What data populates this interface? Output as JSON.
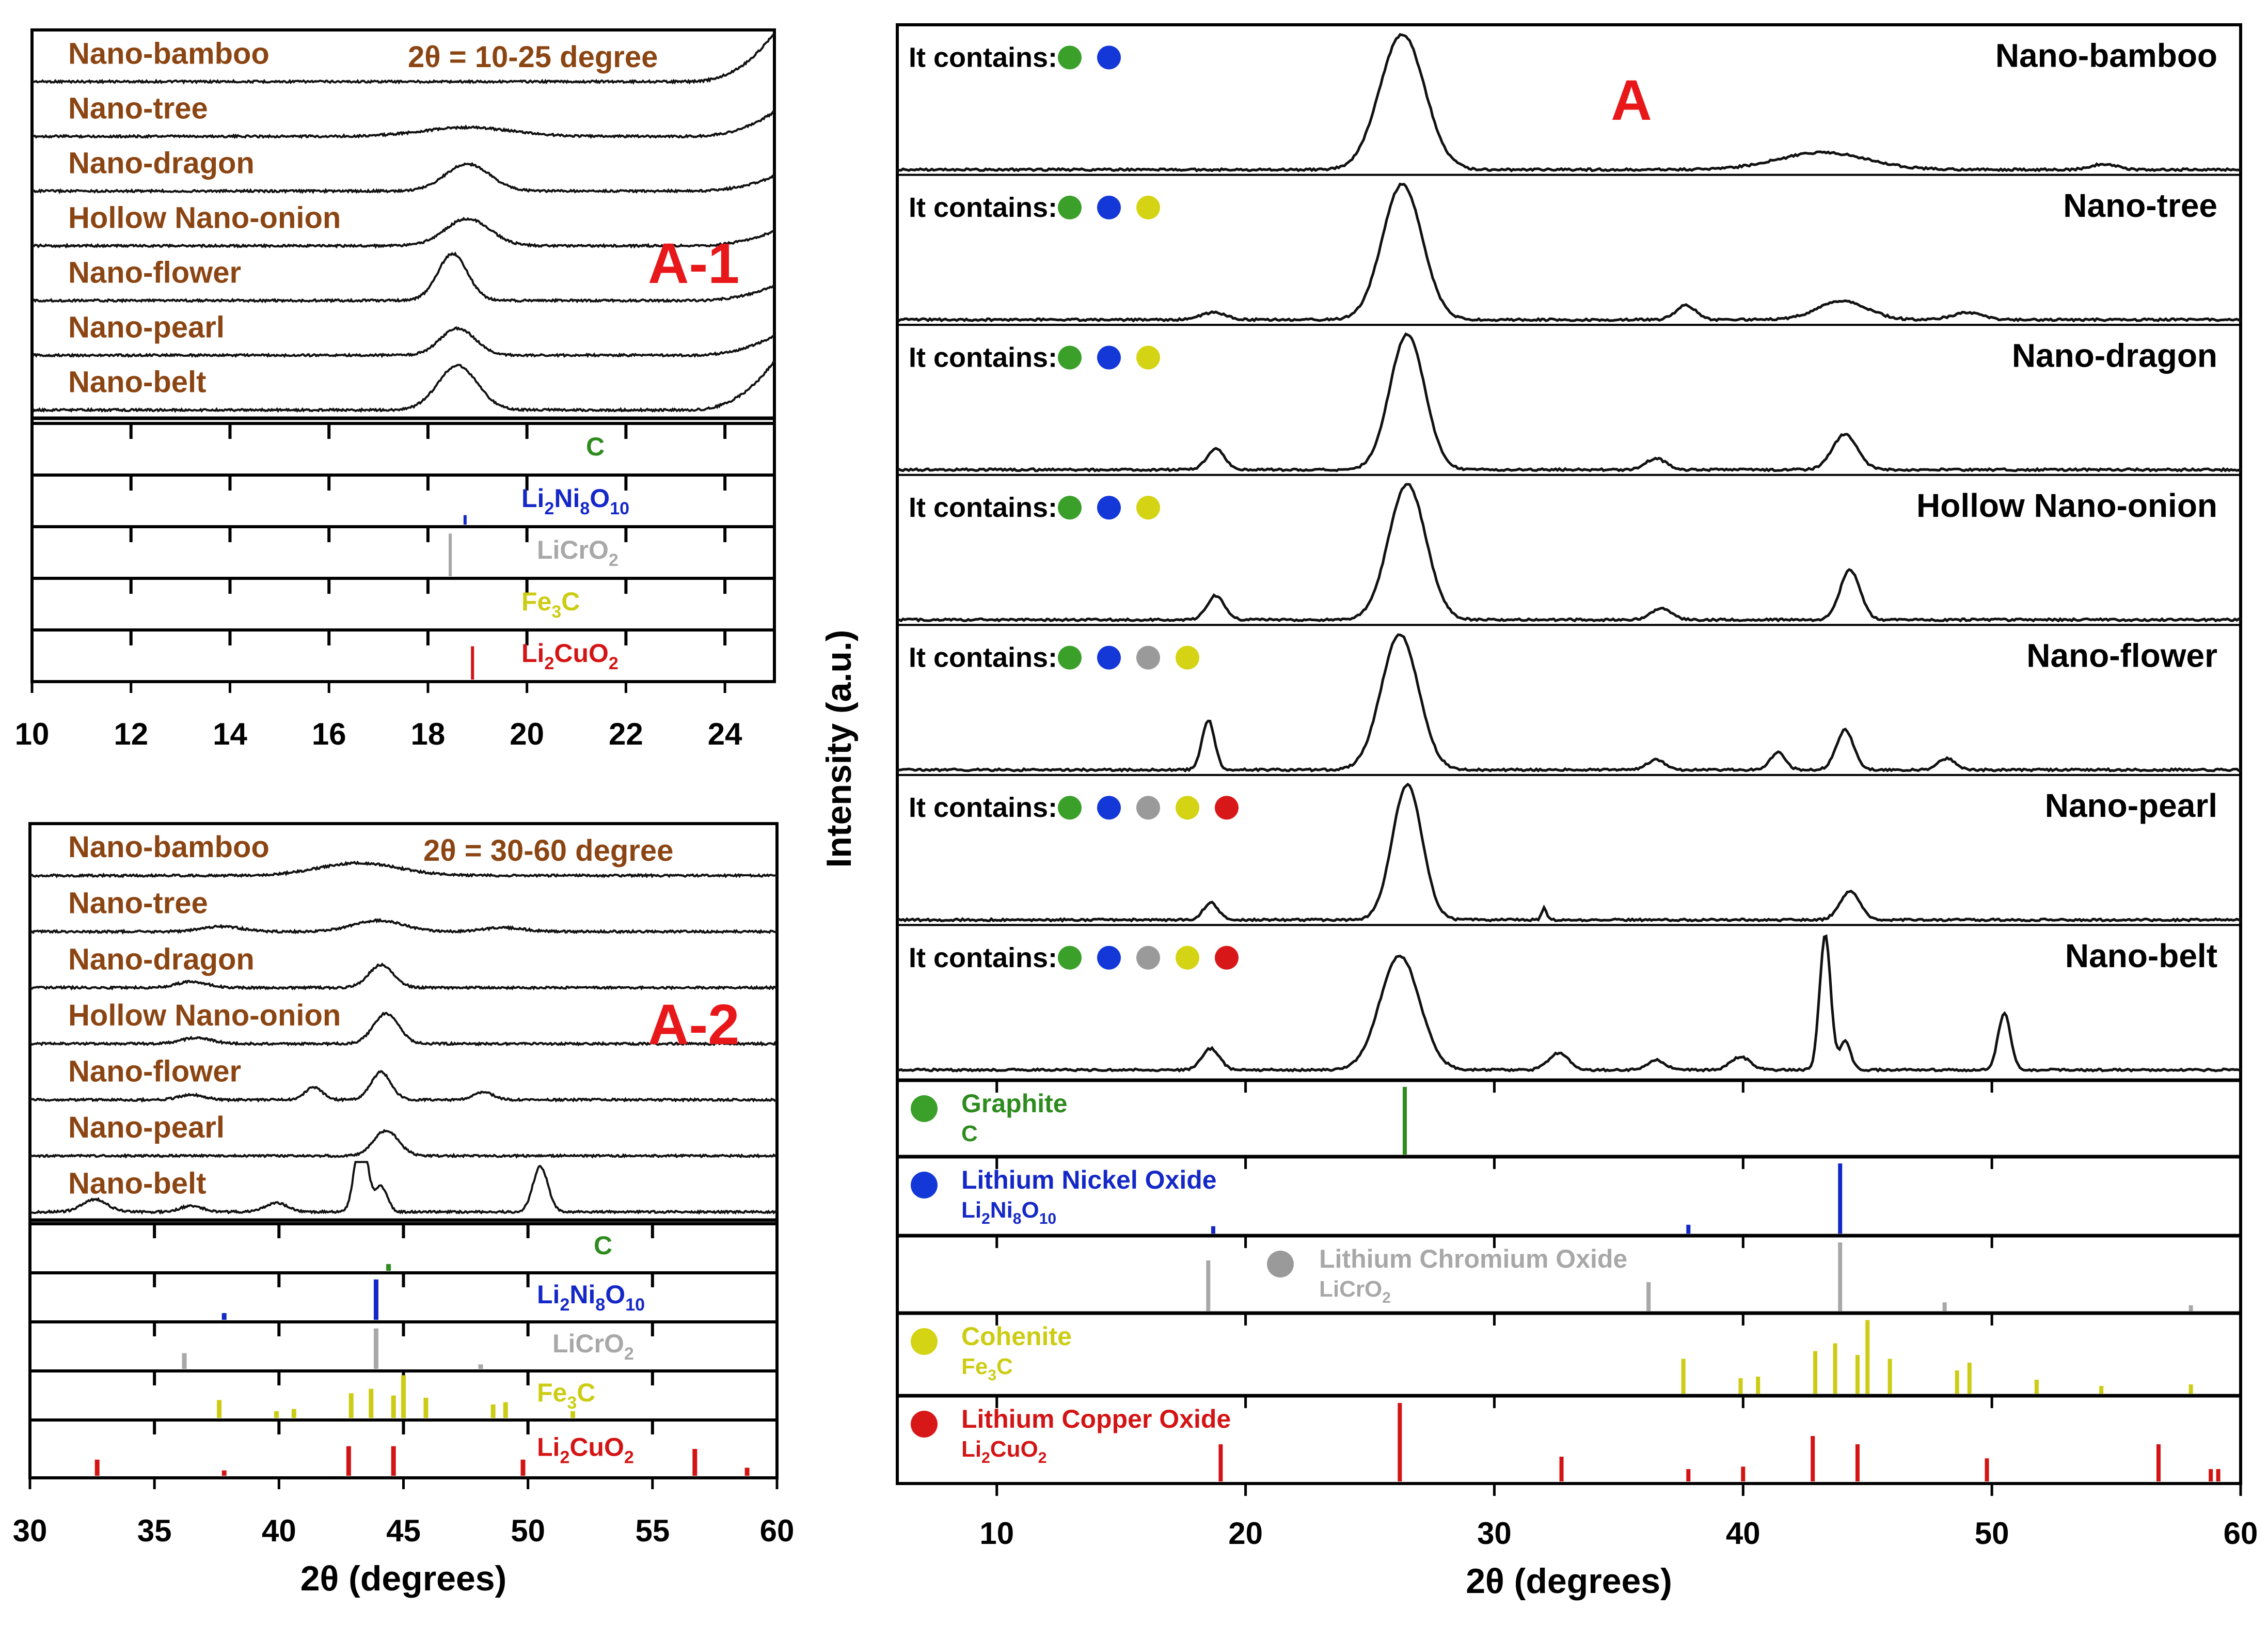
{
  "colors": {
    "sample_text": "#8B4513",
    "panel_letter": "#e8171a",
    "C": "#2e8b1e",
    "Li2Ni8O10": "#1428c8",
    "LiCrO2": "#a8a8a8",
    "Fe3C": "#cccc14",
    "Li2CuO2": "#d41414",
    "dot_green": "#3aa02a",
    "dot_blue": "#1438d8",
    "dot_gray": "#9a9a9a",
    "dot_yellow": "#d4d414",
    "dot_red": "#d81818"
  },
  "chart_data": [
    {
      "id": "A-1",
      "type": "line",
      "panel_label": "A-1",
      "range_label": "2θ = 10-25 degree",
      "xlim": [
        10,
        25
      ],
      "xticks": [
        "10",
        "12",
        "14",
        "16",
        "18",
        "20",
        "22",
        "24"
      ],
      "xtick_values": [
        10,
        12,
        14,
        16,
        18,
        20,
        22,
        24
      ],
      "xlabel": "",
      "samples": [
        {
          "name": "Nano-bamboo",
          "peaks": [],
          "edge_rise": 1.0
        },
        {
          "name": "Nano-tree",
          "peaks": [
            {
              "x": 18.8,
              "h": 0.18,
              "w": 0.9
            }
          ],
          "edge_rise": 0.5
        },
        {
          "name": "Nano-dragon",
          "peaks": [
            {
              "x": 18.8,
              "h": 0.55,
              "w": 0.45
            }
          ],
          "edge_rise": 0.3
        },
        {
          "name": "Hollow Nano-onion",
          "peaks": [
            {
              "x": 18.8,
              "h": 0.55,
              "w": 0.45
            }
          ],
          "edge_rise": 0.3
        },
        {
          "name": "Nano-flower",
          "peaks": [
            {
              "x": 18.5,
              "h": 0.95,
              "w": 0.3
            }
          ],
          "edge_rise": 0.3
        },
        {
          "name": "Nano-pearl",
          "peaks": [
            {
              "x": 18.6,
              "h": 0.55,
              "w": 0.35
            }
          ],
          "edge_rise": 0.4
        },
        {
          "name": "Nano-belt",
          "peaks": [
            {
              "x": 18.6,
              "h": 0.9,
              "w": 0.4
            }
          ],
          "edge_rise": 1.0
        }
      ],
      "reference_labels": [
        "C",
        "Li2Ni8O10",
        "LiCrO2",
        "Fe3C",
        "Li2CuO2"
      ],
      "reference_lines": [
        [],
        [
          {
            "x": 18.75,
            "h": 0.2
          }
        ],
        [
          {
            "x": 18.45,
            "h": 0.9
          }
        ],
        [],
        [
          {
            "x": 18.9,
            "h": 0.7
          }
        ]
      ]
    },
    {
      "id": "A-2",
      "type": "line",
      "panel_label": "A-2",
      "range_label": "2θ = 30-60 degree",
      "xlim": [
        30,
        60
      ],
      "xticks": [
        "30",
        "35",
        "40",
        "45",
        "50",
        "55",
        "60"
      ],
      "xtick_values": [
        30,
        35,
        40,
        45,
        50,
        55,
        60
      ],
      "xlabel": "2θ (degrees)",
      "samples": [
        {
          "name": "Nano-bamboo",
          "peaks": [
            {
              "x": 43.2,
              "h": 0.25,
              "w": 1.6
            }
          ]
        },
        {
          "name": "Nano-tree",
          "peaks": [
            {
              "x": 37.7,
              "h": 0.1,
              "w": 0.8
            },
            {
              "x": 44.0,
              "h": 0.22,
              "w": 1.0
            },
            {
              "x": 49.0,
              "h": 0.08,
              "w": 0.8
            }
          ]
        },
        {
          "name": "Nano-dragon",
          "peaks": [
            {
              "x": 36.5,
              "h": 0.12,
              "w": 0.6
            },
            {
              "x": 44.1,
              "h": 0.45,
              "w": 0.5
            }
          ]
        },
        {
          "name": "Hollow Nano-onion",
          "peaks": [
            {
              "x": 36.7,
              "h": 0.12,
              "w": 0.6
            },
            {
              "x": 44.3,
              "h": 0.6,
              "w": 0.5
            }
          ]
        },
        {
          "name": "Nano-flower",
          "peaks": [
            {
              "x": 36.5,
              "h": 0.1,
              "w": 0.5
            },
            {
              "x": 41.4,
              "h": 0.25,
              "w": 0.35
            },
            {
              "x": 44.1,
              "h": 0.55,
              "w": 0.4
            },
            {
              "x": 48.2,
              "h": 0.15,
              "w": 0.4
            }
          ]
        },
        {
          "name": "Nano-pearl",
          "peaks": [
            {
              "x": 44.3,
              "h": 0.5,
              "w": 0.5
            }
          ]
        },
        {
          "name": "Nano-belt",
          "peaks": [
            {
              "x": 32.6,
              "h": 0.25,
              "w": 0.5
            },
            {
              "x": 36.5,
              "h": 0.12,
              "w": 0.45
            },
            {
              "x": 39.9,
              "h": 0.18,
              "w": 0.45
            },
            {
              "x": 43.3,
              "h": 1.6,
              "w": 0.25
            },
            {
              "x": 44.1,
              "h": 0.5,
              "w": 0.25
            },
            {
              "x": 50.5,
              "h": 0.9,
              "w": 0.3
            }
          ]
        }
      ],
      "reference_labels": [
        "C",
        "Li2Ni8O10",
        "LiCrO2",
        "Fe3C",
        "Li2CuO2"
      ],
      "reference_lines": [
        [
          {
            "x": 44.4,
            "h": 0.15
          }
        ],
        [
          {
            "x": 37.8,
            "h": 0.15
          },
          {
            "x": 43.9,
            "h": 0.9
          }
        ],
        [
          {
            "x": 36.2,
            "h": 0.35
          },
          {
            "x": 43.9,
            "h": 0.9
          },
          {
            "x": 48.1,
            "h": 0.1
          }
        ],
        [
          {
            "x": 37.6,
            "h": 0.4
          },
          {
            "x": 39.9,
            "h": 0.15
          },
          {
            "x": 40.6,
            "h": 0.2
          },
          {
            "x": 42.9,
            "h": 0.55
          },
          {
            "x": 43.7,
            "h": 0.65
          },
          {
            "x": 44.6,
            "h": 0.5
          },
          {
            "x": 45.0,
            "h": 0.95
          },
          {
            "x": 45.9,
            "h": 0.45
          },
          {
            "x": 48.6,
            "h": 0.3
          },
          {
            "x": 49.1,
            "h": 0.35
          },
          {
            "x": 51.8,
            "h": 0.15
          }
        ],
        [
          {
            "x": 32.7,
            "h": 0.3
          },
          {
            "x": 37.8,
            "h": 0.1
          },
          {
            "x": 42.8,
            "h": 0.55
          },
          {
            "x": 44.6,
            "h": 0.55
          },
          {
            "x": 49.8,
            "h": 0.3
          },
          {
            "x": 56.7,
            "h": 0.5
          },
          {
            "x": 58.8,
            "h": 0.15
          }
        ]
      ]
    },
    {
      "id": "A",
      "type": "line",
      "panel_label": "A",
      "xlim": [
        6,
        60
      ],
      "xticks": [
        "10",
        "20",
        "30",
        "40",
        "50",
        "60"
      ],
      "xtick_values": [
        10,
        20,
        30,
        40,
        50,
        60
      ],
      "xlabel": "2θ (degrees)",
      "ylabel": "Intensity (a.u.)",
      "contains_prefix": "It contains:",
      "samples": [
        {
          "name": "Nano-bamboo",
          "dots": [
            "dot_green",
            "dot_blue"
          ],
          "peaks": [
            {
              "x": 26.3,
              "h": 0.95,
              "w": 0.9
            },
            {
              "x": 43.2,
              "h": 0.12,
              "w": 1.8
            },
            {
              "x": 54.5,
              "h": 0.04,
              "w": 0.5
            }
          ]
        },
        {
          "name": "Nano-tree",
          "dots": [
            "dot_green",
            "dot_blue",
            "dot_yellow"
          ],
          "peaks": [
            {
              "x": 26.3,
              "h": 0.95,
              "w": 0.8
            },
            {
              "x": 18.7,
              "h": 0.05,
              "w": 0.5
            },
            {
              "x": 37.7,
              "h": 0.1,
              "w": 0.4
            },
            {
              "x": 44.0,
              "h": 0.13,
              "w": 1.0
            },
            {
              "x": 49.0,
              "h": 0.05,
              "w": 0.6
            }
          ]
        },
        {
          "name": "Nano-dragon",
          "dots": [
            "dot_green",
            "dot_blue",
            "dot_yellow"
          ],
          "peaks": [
            {
              "x": 26.5,
              "h": 0.95,
              "w": 0.7
            },
            {
              "x": 18.8,
              "h": 0.15,
              "w": 0.35
            },
            {
              "x": 36.5,
              "h": 0.08,
              "w": 0.4
            },
            {
              "x": 44.1,
              "h": 0.25,
              "w": 0.5
            }
          ]
        },
        {
          "name": "Hollow Nano-onion",
          "dots": [
            "dot_green",
            "dot_blue",
            "dot_yellow"
          ],
          "peaks": [
            {
              "x": 26.5,
              "h": 0.95,
              "w": 0.75
            },
            {
              "x": 18.8,
              "h": 0.17,
              "w": 0.35
            },
            {
              "x": 36.7,
              "h": 0.08,
              "w": 0.4
            },
            {
              "x": 44.3,
              "h": 0.35,
              "w": 0.4
            }
          ]
        },
        {
          "name": "Nano-flower",
          "dots": [
            "dot_green",
            "dot_blue",
            "dot_gray",
            "dot_yellow"
          ],
          "peaks": [
            {
              "x": 26.2,
              "h": 0.95,
              "w": 0.75
            },
            {
              "x": 18.5,
              "h": 0.35,
              "w": 0.25
            },
            {
              "x": 36.5,
              "h": 0.07,
              "w": 0.35
            },
            {
              "x": 41.4,
              "h": 0.12,
              "w": 0.3
            },
            {
              "x": 44.1,
              "h": 0.28,
              "w": 0.35
            },
            {
              "x": 48.2,
              "h": 0.08,
              "w": 0.35
            }
          ]
        },
        {
          "name": "Nano-pearl",
          "dots": [
            "dot_green",
            "dot_blue",
            "dot_gray",
            "dot_yellow",
            "dot_red"
          ],
          "peaks": [
            {
              "x": 26.5,
              "h": 0.95,
              "w": 0.6
            },
            {
              "x": 18.6,
              "h": 0.12,
              "w": 0.3
            },
            {
              "x": 32.0,
              "h": 0.08,
              "w": 0.1
            },
            {
              "x": 44.3,
              "h": 0.2,
              "w": 0.4
            }
          ]
        },
        {
          "name": "Nano-belt",
          "dots": [
            "dot_green",
            "dot_blue",
            "dot_gray",
            "dot_yellow",
            "dot_red"
          ],
          "peaks": [
            {
              "x": 26.2,
              "h": 0.8,
              "w": 0.8
            },
            {
              "x": 18.6,
              "h": 0.15,
              "w": 0.35
            },
            {
              "x": 32.6,
              "h": 0.12,
              "w": 0.4
            },
            {
              "x": 36.5,
              "h": 0.07,
              "w": 0.35
            },
            {
              "x": 39.9,
              "h": 0.09,
              "w": 0.4
            },
            {
              "x": 43.3,
              "h": 0.95,
              "w": 0.22
            },
            {
              "x": 44.1,
              "h": 0.2,
              "w": 0.22
            },
            {
              "x": 50.5,
              "h": 0.4,
              "w": 0.25
            }
          ]
        }
      ],
      "references": [
        {
          "name": "Graphite",
          "formula": "C",
          "dot": "dot_green",
          "color_key": "C",
          "lines": [
            {
              "x": 26.4,
              "h": 0.95
            }
          ]
        },
        {
          "name": "Lithium Nickel Oxide",
          "formula": "Li2Ni8O10",
          "dot": "dot_blue",
          "color_key": "Li2Ni8O10",
          "lines": [
            {
              "x": 18.7,
              "h": 0.1
            },
            {
              "x": 37.8,
              "h": 0.12
            },
            {
              "x": 43.9,
              "h": 0.95
            }
          ]
        },
        {
          "name": "Lithium Chromium Oxide",
          "formula": "LiCrO2",
          "dot": "dot_gray",
          "color_key": "LiCrO2",
          "lines": [
            {
              "x": 18.5,
              "h": 0.7
            },
            {
              "x": 36.2,
              "h": 0.4
            },
            {
              "x": 43.9,
              "h": 0.95
            },
            {
              "x": 48.1,
              "h": 0.12
            },
            {
              "x": 58.0,
              "h": 0.08
            }
          ]
        },
        {
          "name": "Cohenite",
          "formula": "Fe3C",
          "dot": "dot_yellow",
          "color_key": "Fe3C",
          "lines": [
            {
              "x": 37.6,
              "h": 0.45
            },
            {
              "x": 39.9,
              "h": 0.2
            },
            {
              "x": 40.6,
              "h": 0.22
            },
            {
              "x": 42.9,
              "h": 0.55
            },
            {
              "x": 43.7,
              "h": 0.65
            },
            {
              "x": 44.6,
              "h": 0.5
            },
            {
              "x": 45.0,
              "h": 0.95
            },
            {
              "x": 45.9,
              "h": 0.45
            },
            {
              "x": 48.6,
              "h": 0.3
            },
            {
              "x": 49.1,
              "h": 0.4
            },
            {
              "x": 51.8,
              "h": 0.18
            },
            {
              "x": 54.4,
              "h": 0.1
            },
            {
              "x": 58.0,
              "h": 0.12
            }
          ]
        },
        {
          "name": "Lithium Copper Oxide",
          "formula": "Li2CuO2",
          "dot": "dot_red",
          "color_key": "Li2CuO2",
          "lines": [
            {
              "x": 19.0,
              "h": 0.45
            },
            {
              "x": 26.2,
              "h": 0.95
            },
            {
              "x": 32.7,
              "h": 0.3
            },
            {
              "x": 37.8,
              "h": 0.15
            },
            {
              "x": 40.0,
              "h": 0.18
            },
            {
              "x": 42.8,
              "h": 0.55
            },
            {
              "x": 44.6,
              "h": 0.45
            },
            {
              "x": 49.8,
              "h": 0.28
            },
            {
              "x": 56.7,
              "h": 0.45
            },
            {
              "x": 58.8,
              "h": 0.15
            },
            {
              "x": 59.1,
              "h": 0.15
            }
          ]
        }
      ]
    }
  ]
}
